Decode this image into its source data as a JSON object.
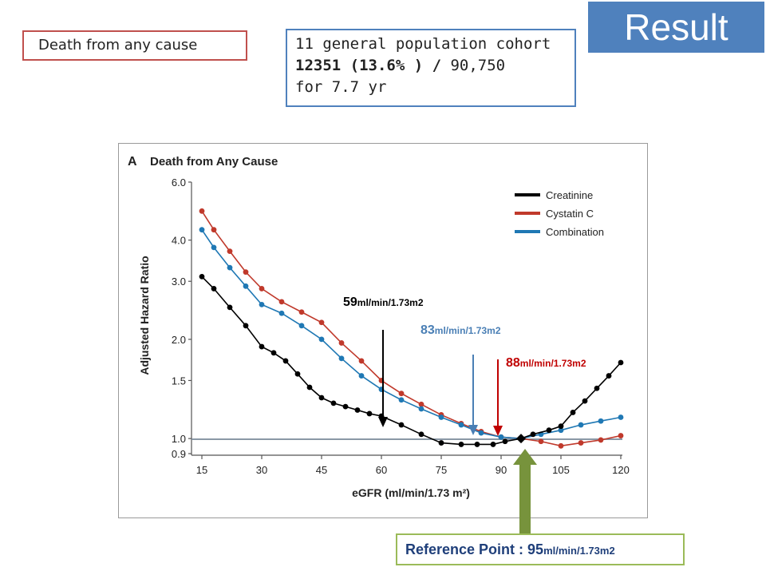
{
  "header": {
    "result_label": "Result",
    "death_label": "Death  from any cause",
    "cohort_line1": "11 general population cohort",
    "cohort_bold": "12351 (13.6% ) /",
    "cohort_rest": " 90,750",
    "cohort_line3": "for 7.7 yr"
  },
  "annotations": {
    "a59_num": "59",
    "a59_unit": "ml/min/1.73m2",
    "a83_num": "83",
    "a83_unit": "ml/min/1.73m2",
    "a88_num": "88",
    "a88_unit": "ml/min/1.73m2",
    "ref_label": "Reference Point : ",
    "ref_num": "95",
    "ref_unit": "ml/min/1.73m2"
  },
  "colors": {
    "creatinine": "#000000",
    "cystatin": "#c0392b",
    "combination": "#1f78b4",
    "result_bg": "#4f81bd",
    "death_border": "#c0504d",
    "cohort_border": "#4f81bd",
    "ref_arrow": "#77933c",
    "ref_border": "#9bbb59"
  },
  "chart_data": {
    "type": "line",
    "panel_letter": "A",
    "title": "Death from Any Cause",
    "xlabel": "eGFR (ml/min/1.73 m²)",
    "ylabel": "Adjusted Hazard Ratio",
    "xlim": [
      15,
      120
    ],
    "ylim": [
      0.9,
      6.0
    ],
    "y_scale": "log",
    "x_ticks": [
      15,
      30,
      45,
      60,
      75,
      90,
      105,
      120
    ],
    "y_ticks": [
      6.0,
      4.0,
      3.0,
      2.0,
      1.5,
      1.0,
      0.9
    ],
    "y_tick_labels": [
      "6.0",
      "4.0",
      "3.0",
      "2.0",
      "1.5",
      "1.0",
      "0.9"
    ],
    "legend_position": "top-right",
    "reference_line_y": 1.0,
    "series": [
      {
        "name": "Creatinine",
        "x": [
          15,
          18,
          22,
          26,
          30,
          33,
          36,
          39,
          42,
          45,
          48,
          51,
          54,
          57,
          60,
          65,
          70,
          75,
          80,
          84,
          88,
          91,
          95,
          98,
          102,
          105,
          108,
          111,
          114,
          117,
          120
        ],
        "y": [
          3.1,
          2.85,
          2.5,
          2.2,
          1.9,
          1.82,
          1.72,
          1.57,
          1.43,
          1.33,
          1.28,
          1.25,
          1.22,
          1.19,
          1.17,
          1.1,
          1.03,
          0.97,
          0.96,
          0.96,
          0.96,
          0.98,
          1.0,
          1.03,
          1.06,
          1.09,
          1.2,
          1.3,
          1.42,
          1.55,
          1.7
        ]
      },
      {
        "name": "Cystatin C",
        "x": [
          15,
          18,
          22,
          26,
          30,
          35,
          40,
          45,
          50,
          55,
          60,
          65,
          70,
          75,
          80,
          85,
          90,
          95,
          100,
          105,
          110,
          115,
          120
        ],
        "y": [
          4.9,
          4.3,
          3.7,
          3.2,
          2.85,
          2.6,
          2.42,
          2.25,
          1.95,
          1.72,
          1.5,
          1.37,
          1.27,
          1.18,
          1.11,
          1.05,
          1.01,
          1.0,
          0.98,
          0.95,
          0.97,
          0.99,
          1.02
        ]
      },
      {
        "name": "Combination",
        "x": [
          15,
          18,
          22,
          26,
          30,
          35,
          40,
          45,
          50,
          55,
          60,
          65,
          70,
          75,
          80,
          85,
          90,
          95,
          100,
          105,
          110,
          115,
          120
        ],
        "y": [
          4.3,
          3.8,
          3.3,
          2.9,
          2.55,
          2.4,
          2.2,
          2.0,
          1.75,
          1.55,
          1.41,
          1.31,
          1.23,
          1.16,
          1.1,
          1.04,
          1.01,
          1.0,
          1.03,
          1.06,
          1.1,
          1.13,
          1.16
        ]
      }
    ],
    "markers": [
      {
        "x": 59,
        "label": "59 ml/min/1.73m2",
        "color": "#000000"
      },
      {
        "x": 83,
        "label": "83 ml/min/1.73m2",
        "color": "#4a7fb5"
      },
      {
        "x": 88,
        "label": "88 ml/min/1.73m2",
        "color": "#c00000"
      },
      {
        "x": 95,
        "label": "Reference Point : 95 ml/min/1.73m2",
        "color": "#77933c"
      }
    ]
  }
}
